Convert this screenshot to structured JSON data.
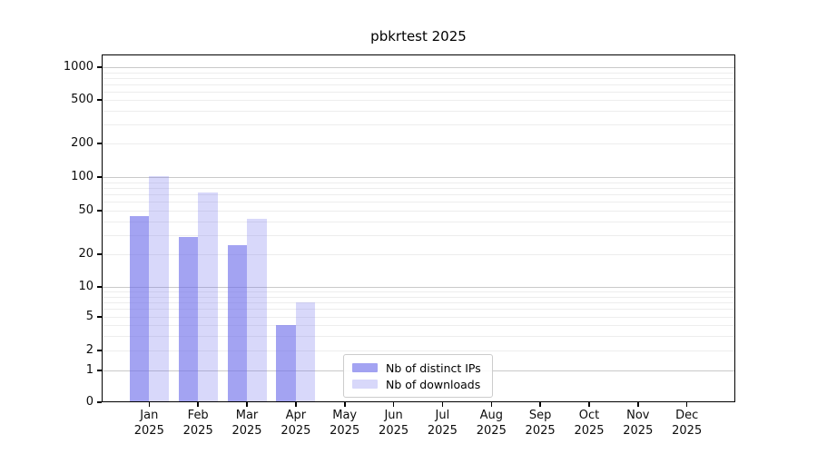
{
  "title": "pbkrtest 2025",
  "chart_data": {
    "type": "bar",
    "title": "pbkrtest 2025",
    "categories": [
      {
        "month": "Jan",
        "year": "2025"
      },
      {
        "month": "Feb",
        "year": "2025"
      },
      {
        "month": "Mar",
        "year": "2025"
      },
      {
        "month": "Apr",
        "year": "2025"
      },
      {
        "month": "May",
        "year": "2025"
      },
      {
        "month": "Jun",
        "year": "2025"
      },
      {
        "month": "Jul",
        "year": "2025"
      },
      {
        "month": "Aug",
        "year": "2025"
      },
      {
        "month": "Sep",
        "year": "2025"
      },
      {
        "month": "Oct",
        "year": "2025"
      },
      {
        "month": "Nov",
        "year": "2025"
      },
      {
        "month": "Dec",
        "year": "2025"
      }
    ],
    "series": [
      {
        "name": "Nb of distinct IPs",
        "color": "rgba(110,110,235,0.63)",
        "values": [
          45,
          29,
          24,
          4,
          0,
          0,
          0,
          0,
          0,
          0,
          0,
          0
        ]
      },
      {
        "name": "Nb of downloads",
        "color": "rgba(110,110,235,0.27)",
        "values": [
          102,
          73,
          42,
          7,
          0,
          0,
          0,
          0,
          0,
          0,
          0,
          0
        ]
      }
    ],
    "y_axis": {
      "tick_labels": [
        "1000",
        "500",
        "200",
        "100",
        "50",
        "20",
        "10",
        "5",
        "2",
        "1",
        "0"
      ],
      "tick_values": [
        1000,
        500,
        200,
        100,
        50,
        20,
        10,
        5,
        2,
        1,
        0
      ],
      "scale": "log-like (1-2-5 ticks, compressed near zero)",
      "ylim": [
        0,
        1000
      ]
    },
    "grid": "horizontal, major at powers of 10 + faint minors",
    "legend_position": "lower center inside plot",
    "colors": {
      "axis": "#000000",
      "grid_major": "#c9c9c9",
      "grid_minor": "#ededed",
      "text": "#0d0d0d"
    }
  },
  "legend": {
    "items": [
      {
        "label": "Nb of distinct IPs"
      },
      {
        "label": "Nb of downloads"
      }
    ]
  }
}
